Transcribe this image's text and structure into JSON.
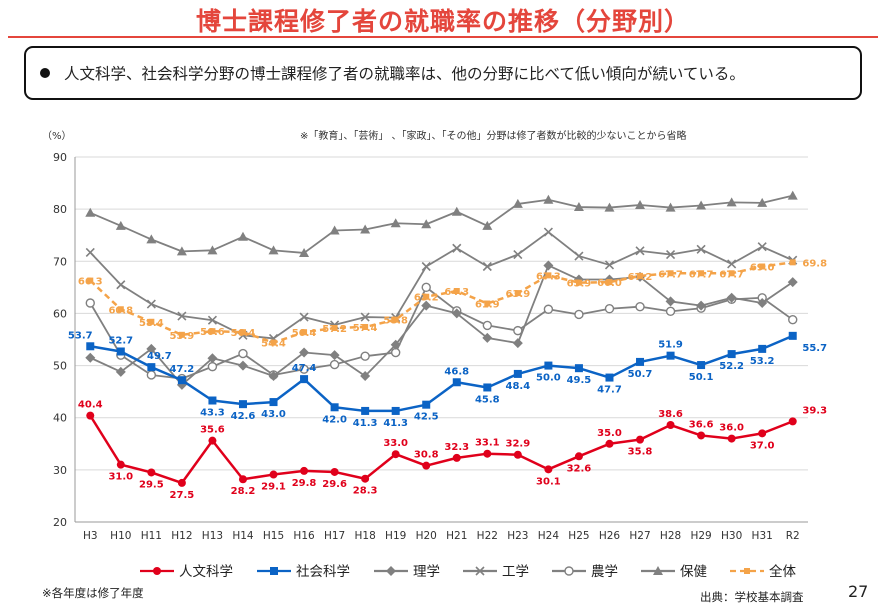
{
  "title": "博士課程修了者の就職率の推移（分野別）",
  "bullet": "人文科学、社会科学分野の博士課程修了者の就職率は、他の分野に比べて低い傾向が続いている。",
  "footnote": "※各年度は修了年度",
  "source": "出典：学校基本調査",
  "page_number": "27",
  "chart_data": {
    "type": "line",
    "ylabel": "（%）",
    "note": "※「教育」、「芸術」 、「家政」、「その他」分野は修了者数が比較的少ないことから省略",
    "ylim": [
      20,
      90
    ],
    "yticks": [
      20,
      30,
      40,
      50,
      60,
      70,
      80,
      90
    ],
    "grid": true,
    "legend_position": "bottom",
    "categories": [
      "H3",
      "H10",
      "H11",
      "H12",
      "H13",
      "H14",
      "H15",
      "H16",
      "H17",
      "H18",
      "H19",
      "H20",
      "H21",
      "H22",
      "H23",
      "H24",
      "H25",
      "H26",
      "H27",
      "H28",
      "H29",
      "H30",
      "H31",
      "R2"
    ],
    "series": [
      {
        "name": "人文科学",
        "color": "#e0001b",
        "marker": "circle-filled",
        "dash": "solid",
        "values": [
          40.4,
          31.0,
          29.5,
          27.5,
          35.6,
          28.2,
          29.1,
          29.8,
          29.6,
          28.3,
          33.0,
          30.8,
          32.3,
          33.1,
          32.9,
          30.1,
          32.6,
          35.0,
          35.8,
          38.6,
          36.6,
          36.0,
          37.0,
          39.3
        ],
        "labels": [
          "40.4",
          "31.0",
          "29.5",
          "27.5",
          "35.6",
          "28.2",
          "29.1",
          "29.8",
          "29.6",
          "28.3",
          "33.0",
          "30.8",
          "32.3",
          "33.1",
          "32.9",
          "30.1",
          "32.6",
          "35.0",
          "35.8",
          "38.6",
          "36.6",
          "36.0",
          "37.0",
          "39.3"
        ]
      },
      {
        "name": "社会科学",
        "color": "#0b63c5",
        "marker": "square",
        "dash": "solid",
        "values": [
          53.7,
          52.7,
          49.7,
          47.2,
          43.3,
          42.6,
          43.0,
          47.4,
          42.0,
          41.3,
          41.3,
          42.5,
          46.8,
          45.8,
          48.4,
          50.0,
          49.5,
          47.7,
          50.7,
          51.9,
          50.1,
          52.2,
          53.2,
          55.7
        ],
        "labels": [
          "53.7",
          "52.7",
          "49.7",
          "47.2",
          "43.3",
          "42.6",
          "43.0",
          "47.4",
          "42.0",
          "41.3",
          "41.3",
          "42.5",
          "46.8",
          "45.8",
          "48.4",
          "50.0",
          "49.5",
          "47.7",
          "50.7",
          "51.9",
          "50.1",
          "52.2",
          "53.2",
          "55.7"
        ]
      },
      {
        "name": "理学",
        "color": "#808080",
        "marker": "diamond",
        "dash": "solid",
        "values": [
          51.5,
          48.8,
          53.2,
          46.3,
          51.4,
          50.0,
          48.0,
          52.5,
          52.0,
          48.0,
          54.0,
          61.5,
          60.0,
          55.3,
          54.3,
          69.2,
          66.5,
          66.5,
          67.0,
          62.3,
          61.5,
          63.0,
          62.0,
          66.0
        ],
        "labels": []
      },
      {
        "name": "工学",
        "color": "#808080",
        "marker": "x",
        "dash": "solid",
        "values": [
          71.7,
          65.5,
          61.8,
          59.5,
          58.7,
          55.8,
          55.2,
          59.3,
          57.8,
          59.3,
          59.2,
          69.0,
          72.5,
          69.0,
          71.3,
          75.6,
          71.0,
          69.3,
          72.0,
          71.3,
          72.3,
          69.5,
          72.8,
          70.2
        ],
        "labels": []
      },
      {
        "name": "農学",
        "color": "#808080",
        "marker": "circle-open",
        "dash": "solid",
        "values": [
          62.0,
          52.0,
          48.2,
          47.5,
          49.8,
          52.3,
          48.2,
          49.3,
          50.2,
          51.8,
          52.5,
          65.0,
          60.5,
          57.7,
          56.7,
          60.8,
          59.8,
          60.9,
          61.3,
          60.4,
          61.0,
          62.7,
          63.0,
          58.8
        ],
        "labels": []
      },
      {
        "name": "保健",
        "color": "#808080",
        "marker": "triangle",
        "dash": "solid",
        "values": [
          79.3,
          76.8,
          74.2,
          71.9,
          72.1,
          74.7,
          72.1,
          71.6,
          75.9,
          76.1,
          77.3,
          77.1,
          79.5,
          76.8,
          81.0,
          81.8,
          80.4,
          80.3,
          80.8,
          80.3,
          80.7,
          81.3,
          81.2,
          82.6
        ],
        "labels": []
      },
      {
        "name": "全体",
        "color": "#f4a349",
        "marker": "square-small",
        "dash": "dashed",
        "values": [
          66.3,
          60.8,
          58.4,
          55.9,
          56.6,
          56.4,
          54.4,
          56.4,
          57.2,
          57.4,
          58.8,
          63.2,
          64.3,
          61.9,
          63.9,
          67.3,
          65.9,
          66.0,
          67.2,
          67.7,
          67.7,
          67.7,
          69.0,
          69.8
        ],
        "labels": [
          "66.3",
          "60.8",
          "58.4",
          "55.9",
          "56.6",
          "56.4",
          "54.4",
          "56.4",
          "57.2",
          "57.4",
          "58.8",
          "63.2",
          "64.3",
          "61.9",
          "63.9",
          "67.3",
          "65.9",
          "66.0",
          "67.2",
          "67.7",
          "67.7",
          "67.7",
          "69.0",
          "69.8"
        ]
      }
    ]
  }
}
